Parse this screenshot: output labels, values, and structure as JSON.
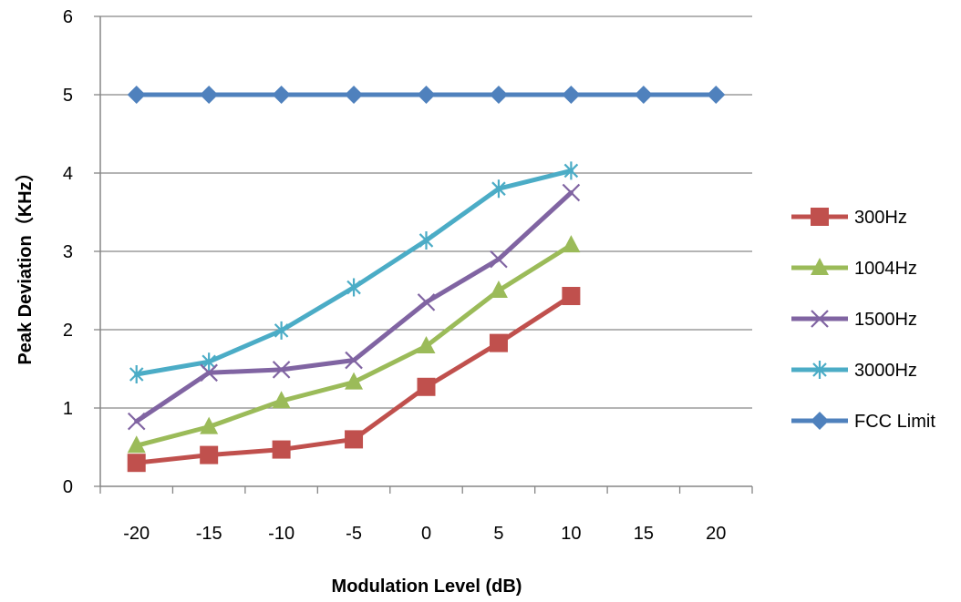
{
  "chart_data": {
    "type": "line",
    "title": "",
    "xlabel": "Modulation Level (dB)",
    "ylabel": "Peak Deviation（KHz）",
    "x": [
      -20,
      -15,
      -10,
      -5,
      0,
      5,
      10,
      15,
      20
    ],
    "x_tick_labels": [
      "-20",
      "-15",
      "-10",
      "-5",
      "0",
      "5",
      "10",
      "15",
      "20"
    ],
    "ylim": [
      0,
      6
    ],
    "y_tick_labels": [
      "0",
      "1",
      "2",
      "3",
      "4",
      "5",
      "6"
    ],
    "grid": "horizontal",
    "legend_position": "right",
    "series": [
      {
        "name": "300Hz",
        "color": "#C0504D",
        "marker": "square",
        "values": [
          0.3,
          0.4,
          0.47,
          0.6,
          1.27,
          1.83,
          2.43,
          null,
          null
        ]
      },
      {
        "name": "1004Hz",
        "color": "#9BBB59",
        "marker": "triangle",
        "values": [
          0.52,
          0.76,
          1.09,
          1.33,
          1.79,
          2.5,
          3.08,
          null,
          null
        ]
      },
      {
        "name": "1500Hz",
        "color": "#8064A2",
        "marker": "x",
        "values": [
          0.83,
          1.45,
          1.49,
          1.61,
          2.35,
          2.9,
          3.75,
          null,
          null
        ]
      },
      {
        "name": "3000Hz",
        "color": "#4BACC6",
        "marker": "star",
        "values": [
          1.43,
          1.59,
          1.99,
          2.54,
          3.14,
          3.8,
          4.03,
          null,
          null
        ]
      },
      {
        "name": "FCC Limit",
        "color": "#4F81BD",
        "marker": "diamond",
        "values": [
          5,
          5,
          5,
          5,
          5,
          5,
          5,
          5,
          5
        ]
      }
    ]
  }
}
